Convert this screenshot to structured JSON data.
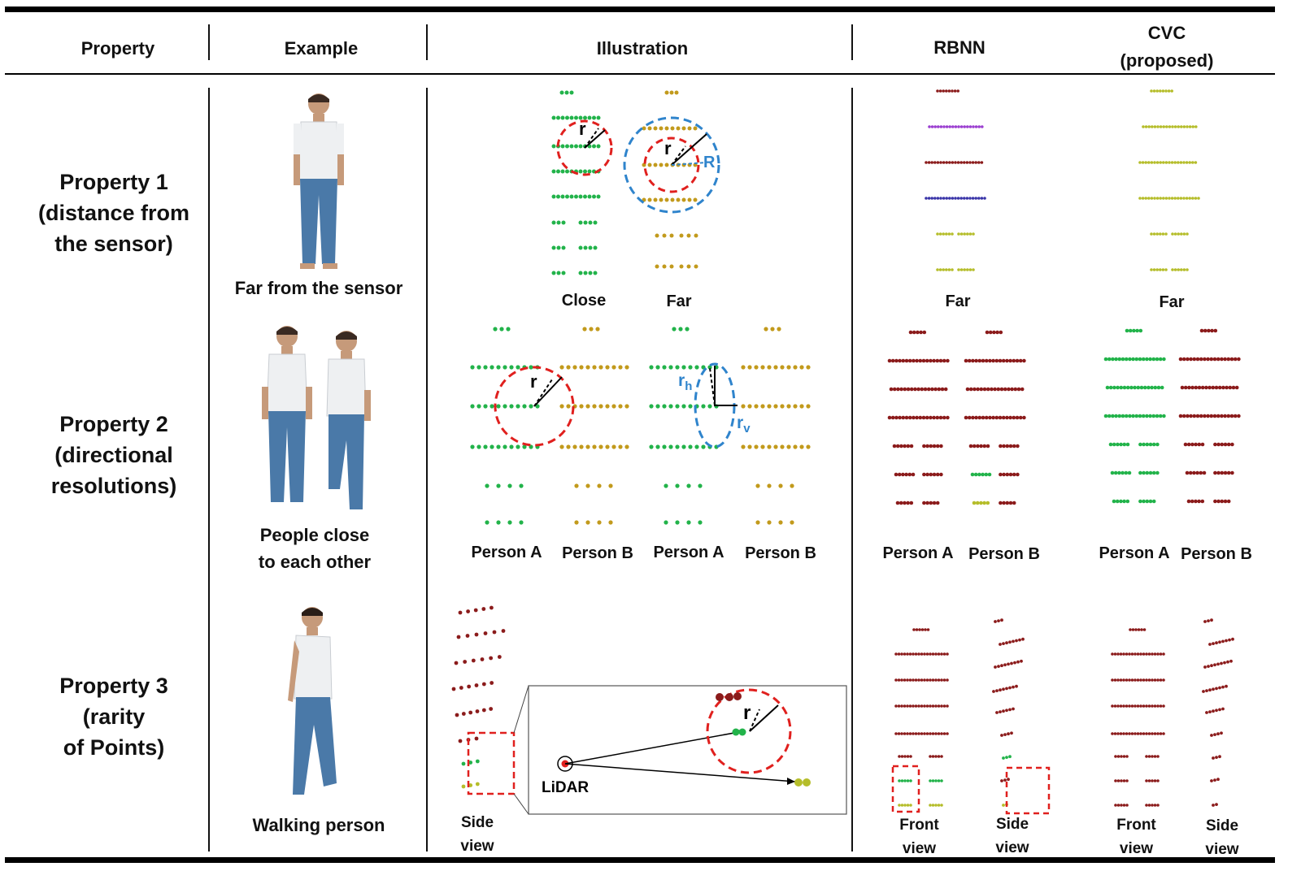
{
  "header": {
    "property": "Property",
    "example": "Example",
    "illustration": "Illustration",
    "rbnn": "RBNN",
    "cvc": "CVC\n(proposed)"
  },
  "rows": [
    {
      "property": "Property 1\n(distance from\nthe sensor)",
      "example_caption": "Far from the sensor",
      "illustration_labels": [
        "Close",
        "Far"
      ],
      "rbnn_label": "Far",
      "cvc_label": "Far",
      "radius_labels": [
        "r",
        "r",
        "R"
      ]
    },
    {
      "property": "Property 2\n(directional\nresolutions)",
      "example_caption": "People close\nto each other",
      "illustration_labels": [
        "Person A",
        "Person B",
        "Person A",
        "Person B"
      ],
      "rbnn_labels": [
        "Person A",
        "Person B"
      ],
      "cvc_labels": [
        "Person A",
        "Person B"
      ],
      "radius_labels": [
        "r",
        "r",
        "h",
        "r",
        "v"
      ]
    },
    {
      "property": "Property 3\n(rarity\nof Points)",
      "example_caption": "Walking person",
      "illustration_label": "Side\nview",
      "inset": {
        "lidar": "LiDAR",
        "radius": "r"
      },
      "rbnn_labels": [
        "Front\nview",
        "Side\nview"
      ],
      "cvc_labels": [
        "Front\nview",
        "Side\nview"
      ]
    }
  ],
  "colors": {
    "green": "#22b34a",
    "gold": "#c29a1c",
    "olive": "#b5bd2a",
    "darkred": "#8b1b1b",
    "purple": "#9b3fd0",
    "navy": "#3a35a8",
    "circle_red": "#e0201e",
    "circle_blue": "#2f84cc"
  }
}
